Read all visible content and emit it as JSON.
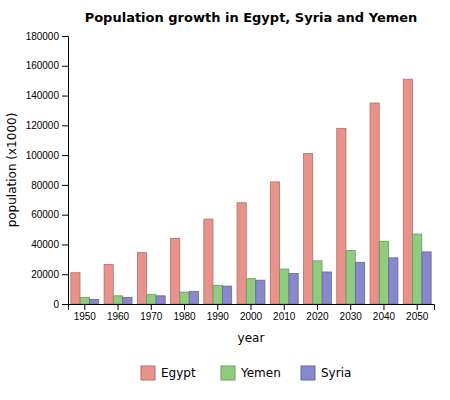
{
  "chart_data": {
    "type": "bar",
    "title": "Population growth in Egypt, Syria and Yemen",
    "xlabel": "year",
    "ylabel": "population (x1000)",
    "categories": [
      "1950",
      "1960",
      "1970",
      "1980",
      "1990",
      "2000",
      "2010",
      "2020",
      "2030",
      "2040",
      "2050"
    ],
    "series": [
      {
        "name": "Egypt",
        "color": "#e8938a",
        "values": [
          21000,
          26500,
          34500,
          44000,
          57000,
          68000,
          82000,
          101000,
          118000,
          135000,
          151000
        ]
      },
      {
        "name": "Yemen",
        "color": "#8fcc7f",
        "values": [
          4500,
          5500,
          6500,
          8000,
          12500,
          17000,
          23500,
          29000,
          36000,
          42000,
          47000
        ]
      },
      {
        "name": "Syria",
        "color": "#8888cc",
        "values": [
          3000,
          4500,
          5500,
          8500,
          12000,
          16000,
          20500,
          21500,
          28000,
          31000,
          35000
        ]
      }
    ],
    "ylim": [
      0,
      180000
    ],
    "yticks": [
      0,
      20000,
      40000,
      60000,
      80000,
      100000,
      120000,
      140000,
      160000,
      180000
    ],
    "grid": false,
    "legend": "bottom"
  }
}
